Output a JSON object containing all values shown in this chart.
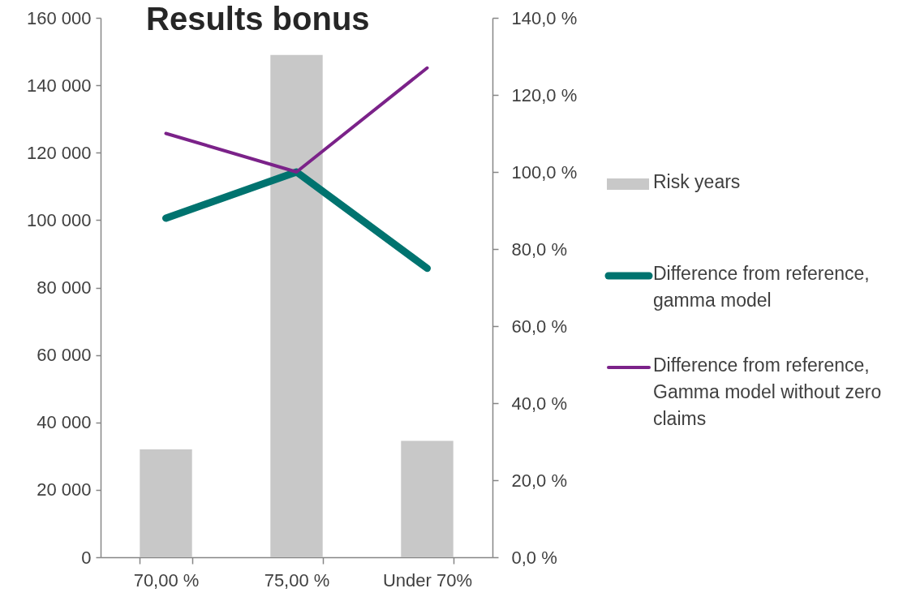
{
  "chart_data": {
    "type": "bar",
    "title": "Results bonus",
    "categories": [
      "70,00 %",
      "75,00 %",
      "Under 70%"
    ],
    "series": [
      {
        "name": "Risk years",
        "color": "#c8c8c8",
        "values": [
          32000,
          149000,
          34500
        ]
      },
      {
        "name": "Difference from reference, gamma model",
        "type": "line",
        "axis": "y2",
        "color": "#00736f",
        "values": [
          88,
          100,
          75
        ]
      },
      {
        "name": "Difference from reference, Gamma model without zero claims",
        "type": "line",
        "axis": "y2",
        "color": "#7b2289",
        "values": [
          110,
          100,
          127
        ]
      }
    ],
    "ylim": [
      0,
      160000
    ],
    "yticks": [
      0,
      {
        "value": 20000,
        "label": "20 000"
      },
      {
        "value": 40000,
        "label": "40 000"
      },
      {
        "value": 60000,
        "label": "60 000"
      },
      {
        "value": 80000,
        "label": "80 000"
      },
      {
        "value": 100000,
        "label": "100 000"
      },
      {
        "value": 120000,
        "label": "120 000"
      },
      {
        "value": 140000,
        "label": "140 000"
      },
      {
        "value": 160000,
        "label": "160 000"
      }
    ],
    "y2lim": [
      0,
      140
    ],
    "y2ticks": [
      {
        "value": 0,
        "label": "0,0 %"
      },
      {
        "value": 20,
        "label": "20,0 %"
      },
      {
        "value": 40,
        "label": "40,0 %"
      },
      {
        "value": 60,
        "label": "60,0 %"
      },
      {
        "value": 80,
        "label": "80,0 %"
      },
      {
        "value": 100,
        "label": "100,0 %"
      },
      {
        "value": 120,
        "label": "120,0 %"
      },
      {
        "value": 140,
        "label": "140,0 %"
      }
    ],
    "legend": "right"
  }
}
